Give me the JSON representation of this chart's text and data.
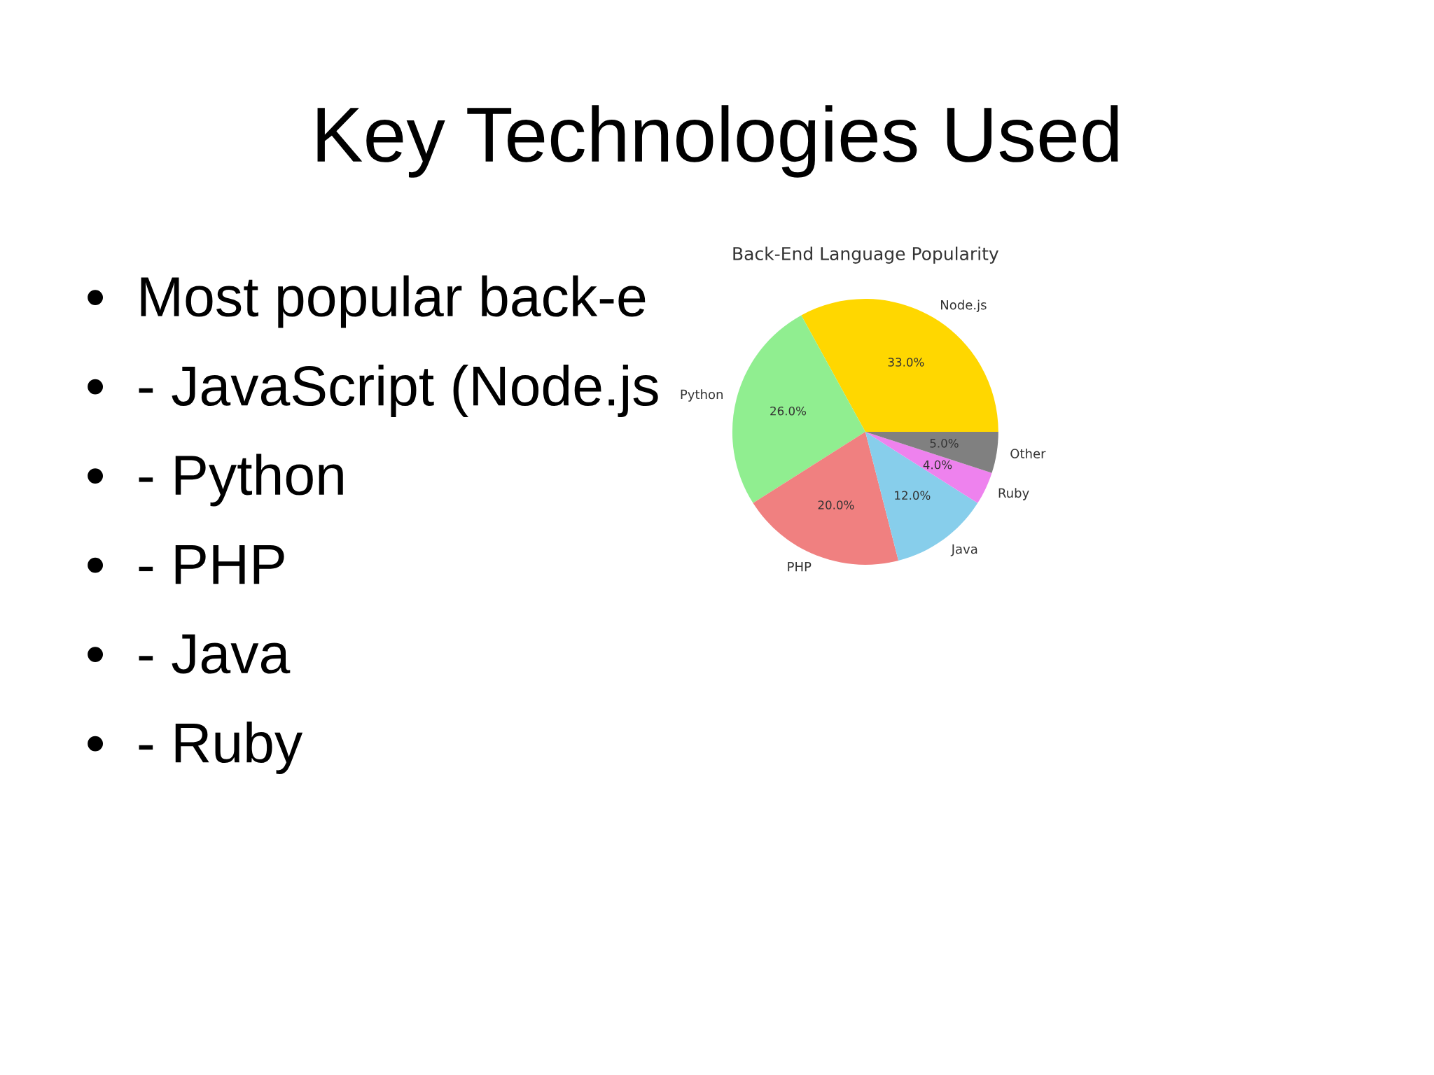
{
  "chart_data": {
    "type": "pie",
    "title": "Key Technologies Used",
    "subtitle": "Back-End Language Popularity",
    "categories": [
      "Node.js",
      "Python",
      "PHP",
      "Java",
      "Ruby",
      "Other"
    ],
    "values": [
      33,
      26,
      20,
      12,
      4,
      5
    ],
    "colors": [
      "#ffd700",
      "#90ee90",
      "#f08080",
      "#87ceeb",
      "#ee82ee",
      "#808080"
    ],
    "value_labels": [
      "33.0%",
      "26.0%",
      "20.0%",
      "12.0%",
      "4.0%",
      "5.0%"
    ],
    "annotations": [
      "•  Most popular back-e",
      "•  - JavaScript (Node.js",
      "•  - Python",
      "•  - PHP",
      "•  - Java",
      "•  - Ruby"
    ]
  }
}
